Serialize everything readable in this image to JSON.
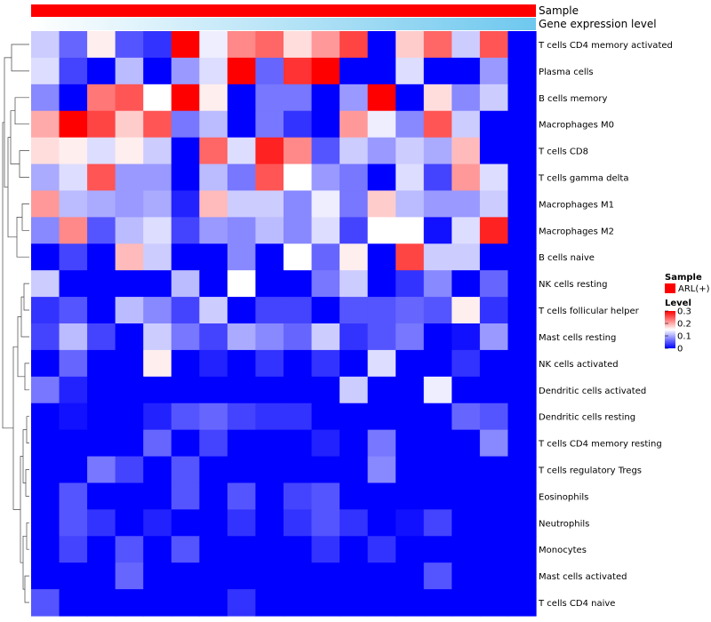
{
  "chart_data": {
    "type": "heatmap",
    "title": "",
    "annotation_tracks": [
      {
        "name": "Sample",
        "color": "#ff0000"
      },
      {
        "name": "Gene expression level",
        "gradient": [
          "#ffffff",
          "#6ec8ee"
        ]
      }
    ],
    "rows": [
      "T cells CD4 memory activated",
      "Plasma cells",
      "B cells memory",
      "Macrophages M0",
      "T cells CD8",
      "T cells gamma delta",
      "Macrophages M1",
      "Macrophages M2",
      "B cells naive",
      "NK cells resting",
      "T cells follicular helper",
      "Mast cells resting",
      "NK cells activated",
      "Dendritic cells activated",
      "Dendritic cells resting",
      "T cells CD4 memory resting",
      "T cells regulatory  Tregs",
      "Eosinophils",
      "Neutrophils",
      "Monocytes",
      "Mast cells activated",
      "T cells CD4 naive"
    ],
    "n_columns": 18,
    "values": [
      [
        0.12,
        0.06,
        0.16,
        0.05,
        0.03,
        0.3,
        0.14,
        0.22,
        0.24,
        0.17,
        0.21,
        0.26,
        0.0,
        0.18,
        0.24,
        0.12,
        0.25,
        0.0
      ],
      [
        0.13,
        0.04,
        0.0,
        0.11,
        0.0,
        0.09,
        0.13,
        0.3,
        0.06,
        0.27,
        0.3,
        0.0,
        0.0,
        0.13,
        0.0,
        0.0,
        0.09,
        0.0
      ],
      [
        0.08,
        0.0,
        0.23,
        0.25,
        0.15,
        0.3,
        0.16,
        0.0,
        0.07,
        0.07,
        0.0,
        0.09,
        0.3,
        0.0,
        0.17,
        0.08,
        0.12,
        0.0
      ],
      [
        0.2,
        0.3,
        0.26,
        0.18,
        0.25,
        0.07,
        0.11,
        0.0,
        0.07,
        0.03,
        0.0,
        0.21,
        0.14,
        0.08,
        0.25,
        0.12,
        0.0,
        0.0
      ],
      [
        0.17,
        0.16,
        0.13,
        0.16,
        0.12,
        0.0,
        0.24,
        0.13,
        0.28,
        0.22,
        0.05,
        0.12,
        0.09,
        0.12,
        0.1,
        0.19,
        0.0,
        0.0
      ],
      [
        0.1,
        0.13,
        0.25,
        0.09,
        0.09,
        0.0,
        0.11,
        0.07,
        0.25,
        0.15,
        0.09,
        0.07,
        0.0,
        0.13,
        0.04,
        0.21,
        0.13,
        0.0
      ],
      [
        0.21,
        0.11,
        0.1,
        0.09,
        0.1,
        0.02,
        0.19,
        0.12,
        0.12,
        0.08,
        0.14,
        0.07,
        0.18,
        0.11,
        0.09,
        0.09,
        0.12,
        0.0
      ],
      [
        0.08,
        0.22,
        0.05,
        0.11,
        0.13,
        0.04,
        0.09,
        0.08,
        0.11,
        0.08,
        0.13,
        0.04,
        0.15,
        0.15,
        0.01,
        0.13,
        0.28,
        0.0
      ],
      [
        0.0,
        0.04,
        0.0,
        0.19,
        0.12,
        0.0,
        0.0,
        0.08,
        0.0,
        0.15,
        0.06,
        0.16,
        0.0,
        0.26,
        0.12,
        0.12,
        0.0,
        0.0
      ],
      [
        0.12,
        0.0,
        0.0,
        0.0,
        0.0,
        0.11,
        0.0,
        0.15,
        0.0,
        0.0,
        0.07,
        0.12,
        0.0,
        0.03,
        0.08,
        0.0,
        0.06,
        0.0
      ],
      [
        0.03,
        0.05,
        0.0,
        0.11,
        0.08,
        0.04,
        0.12,
        0.0,
        0.04,
        0.04,
        0.0,
        0.05,
        0.05,
        0.06,
        0.05,
        0.16,
        0.03,
        0.0
      ],
      [
        0.04,
        0.11,
        0.04,
        0.0,
        0.12,
        0.07,
        0.04,
        0.1,
        0.08,
        0.06,
        0.12,
        0.03,
        0.05,
        0.07,
        0.0,
        0.01,
        0.09,
        0.0
      ],
      [
        0.0,
        0.06,
        0.0,
        0.0,
        0.16,
        0.0,
        0.02,
        0.0,
        0.03,
        0.0,
        0.03,
        0.0,
        0.13,
        0.0,
        0.0,
        0.03,
        0.0,
        0.0
      ],
      [
        0.07,
        0.02,
        0.0,
        0.0,
        0.0,
        0.0,
        0.0,
        0.0,
        0.0,
        0.0,
        0.0,
        0.12,
        0.0,
        0.0,
        0.14,
        0.0,
        0.0,
        0.0
      ],
      [
        0.0,
        0.01,
        0.0,
        0.0,
        0.02,
        0.05,
        0.06,
        0.04,
        0.03,
        0.03,
        0.0,
        0.0,
        0.0,
        0.0,
        0.0,
        0.06,
        0.05,
        0.0
      ],
      [
        0.0,
        0.0,
        0.0,
        0.0,
        0.06,
        0.0,
        0.04,
        0.0,
        0.0,
        0.0,
        0.02,
        0.0,
        0.07,
        0.0,
        0.0,
        0.0,
        0.08,
        0.0
      ],
      [
        0.0,
        0.0,
        0.07,
        0.04,
        0.0,
        0.05,
        0.0,
        0.0,
        0.0,
        0.0,
        0.0,
        0.0,
        0.08,
        0.0,
        0.0,
        0.0,
        0.0,
        0.0
      ],
      [
        0.0,
        0.05,
        0.0,
        0.0,
        0.0,
        0.05,
        0.0,
        0.05,
        0.0,
        0.04,
        0.05,
        0.0,
        0.0,
        0.0,
        0.0,
        0.0,
        0.0,
        0.0
      ],
      [
        0.0,
        0.05,
        0.03,
        0.0,
        0.02,
        0.0,
        0.0,
        0.03,
        0.0,
        0.03,
        0.05,
        0.03,
        0.0,
        0.01,
        0.04,
        0.0,
        0.0,
        0.0
      ],
      [
        0.0,
        0.04,
        0.0,
        0.05,
        0.0,
        0.05,
        0.0,
        0.0,
        0.0,
        0.0,
        0.03,
        0.0,
        0.03,
        0.0,
        0.0,
        0.0,
        0.0,
        0.0
      ],
      [
        0.0,
        0.0,
        0.0,
        0.06,
        0.0,
        0.0,
        0.0,
        0.0,
        0.0,
        0.0,
        0.0,
        0.0,
        0.0,
        0.0,
        0.05,
        0.0,
        0.0,
        0.0
      ],
      [
        0.05,
        0.0,
        0.0,
        0.0,
        0.0,
        0.0,
        0.0,
        0.03,
        0.0,
        0.0,
        0.0,
        0.0,
        0.0,
        0.0,
        0.0,
        0.0,
        0.0,
        0.0
      ]
    ],
    "color_scale": {
      "min": 0,
      "max": 0.3,
      "colors": [
        "#0000ff",
        "#ffffff",
        "#ff0000"
      ]
    },
    "legend": {
      "position": "right",
      "sample_title": "Sample",
      "sample_items": [
        {
          "label": "ARL(+)",
          "color": "#ff0000"
        }
      ],
      "level_title": "Level",
      "level_ticks": [
        {
          "label": "0.3",
          "value": 0.3
        },
        {
          "label": "0.2",
          "value": 0.2
        },
        {
          "label": "0.1",
          "value": 0.1
        },
        {
          "label": "0",
          "value": 0
        }
      ]
    },
    "dendrogram": "rows",
    "grid": false
  }
}
